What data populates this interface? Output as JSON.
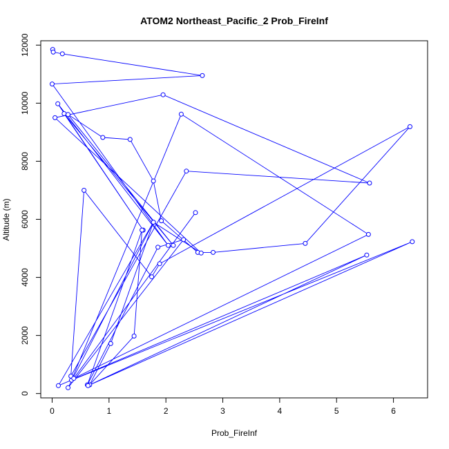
{
  "chart_data": {
    "type": "line",
    "title": "ATOM2 Northeast_Pacific_2 Prob_FireInf",
    "xlabel": "Prob_FireInf",
    "ylabel": "Altitude (m)",
    "xlim": [
      -0.2,
      6.6
    ],
    "ylim": [
      -150,
      12150
    ],
    "xticks": [
      0,
      1,
      2,
      3,
      4,
      5,
      6
    ],
    "yticks": [
      0,
      2000,
      4000,
      6000,
      8000,
      10000,
      12000
    ],
    "grid": false,
    "colors": {
      "series": "#0000ff",
      "axes": "#000000"
    },
    "series": [
      {
        "marker": "open-circle",
        "x": [
          0.01,
          0.02,
          0.18,
          2.64,
          0.0,
          2.04,
          0.1,
          1.6,
          0.21,
          2.13,
          0.28,
          0.89,
          1.37,
          1.78,
          1.92,
          2.56,
          2.83,
          4.45,
          6.29,
          1.89,
          1.75,
          0.56,
          0.33,
          2.36,
          5.58,
          1.95,
          0.05,
          2.62,
          1.78,
          1.03,
          0.66,
          1.44,
          1.58,
          0.62,
          1.86,
          2.31,
          0.28,
          1.78,
          0.11,
          5.53,
          0.63,
          6.33,
          0.34,
          2.27,
          5.56,
          0.38,
          2.52
        ]
      }
    ],
    "y": [
      11850,
      11760,
      11700,
      10950,
      10660,
      5100,
      9980,
      5630,
      9640,
      5100,
      9610,
      8820,
      8750,
      7320,
      5950,
      4860,
      4860,
      5170,
      9190,
      4470,
      4020,
      7000,
      600,
      7660,
      7250,
      10290,
      9500,
      4840,
      5900,
      1720,
      300,
      1980,
      5630,
      300,
      5040,
      5300,
      200,
      5900,
      270,
      4770,
      270,
      5230,
      460,
      9620,
      5480,
      520,
      6230
    ]
  }
}
